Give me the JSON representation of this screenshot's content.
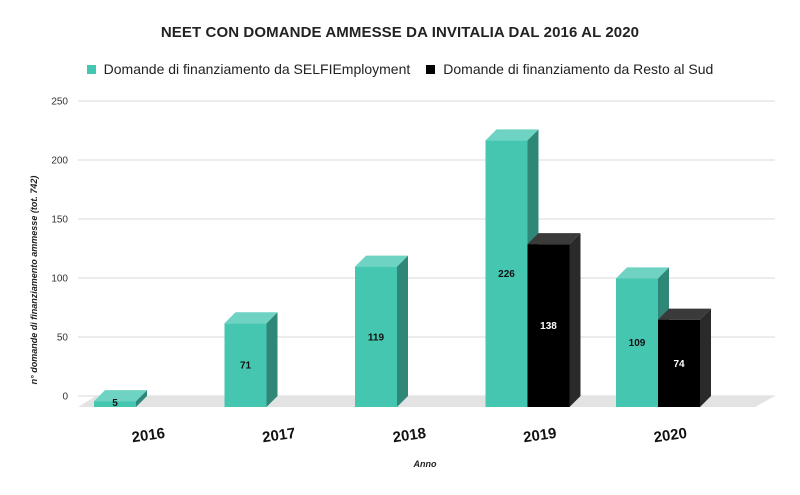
{
  "chart_data": {
    "type": "bar",
    "title": "NEET CON DOMANDE AMMESSE DA INVITALIA DAL  2016 AL 2020",
    "xlabel": "Anno",
    "ylabel": "n° domande di finanziamento ammesse (tot. 742)",
    "categories": [
      "2016",
      "2017",
      "2018",
      "2019",
      "2020"
    ],
    "ylim": [
      0,
      250
    ],
    "yticks": [
      0,
      50,
      100,
      150,
      200,
      250
    ],
    "grid": true,
    "legend_position": "top",
    "series": [
      {
        "name": "Domande di finanziamento da SELFIEmployment",
        "color": "#45c6b1",
        "values": [
          5,
          71,
          119,
          226,
          109
        ],
        "labels": [
          "5",
          "71",
          "119",
          "226",
          "109"
        ]
      },
      {
        "name": "Domande di finanziamento da Resto al Sud",
        "color": "#000000",
        "values": [
          null,
          null,
          null,
          138,
          74
        ],
        "labels": [
          "",
          "",
          "",
          "138",
          "74"
        ]
      }
    ]
  }
}
